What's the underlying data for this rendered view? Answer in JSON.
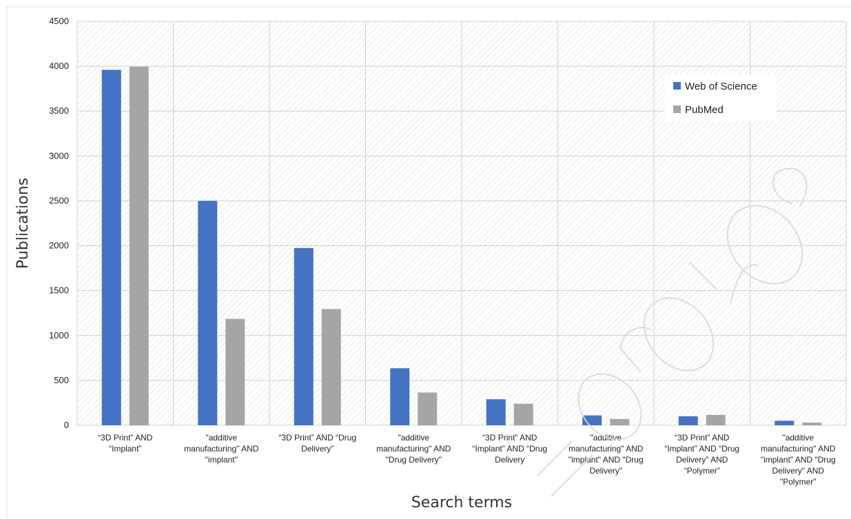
{
  "chart_data": {
    "type": "bar",
    "title": "",
    "xlabel": "Search terms",
    "ylabel": "Publications",
    "ylim": [
      0,
      4500
    ],
    "yticks": [
      0,
      500,
      1000,
      1500,
      2000,
      2500,
      3000,
      3500,
      4000,
      4500
    ],
    "grid": true,
    "legend_position": "top-right",
    "categories": [
      [
        "“3D Print” AND",
        "“Implant”"
      ],
      [
        "\"additive",
        "manufacturing\" AND",
        "\"implant\""
      ],
      [
        "“3D Print” AND “Drug",
        "Delivery”"
      ],
      [
        "\"additive",
        "manufacturing\" AND",
        "\"Drug Delivery\""
      ],
      [
        "“3D Print” AND",
        "“Implant” AND “Drug",
        "Delivery"
      ],
      [
        "\"additive",
        "manufacturing\" AND",
        "\"implant\" AND \"Drug",
        "Delivery\""
      ],
      [
        "“3D Print” AND",
        "“Implant” AND “Drug",
        "Delivery” AND",
        "“Polymer”"
      ],
      [
        "\"additive",
        "manufacturing\" AND",
        "\"implant\" AND \"Drug",
        "Delivery\" AND",
        "\"Polymer\""
      ]
    ],
    "series": [
      {
        "name": "Web of Science",
        "color": "#4472c4",
        "values": [
          3960,
          2500,
          1975,
          635,
          290,
          110,
          100,
          50
        ]
      },
      {
        "name": "PubMed",
        "color": "#a5a5a5",
        "values": [
          3995,
          1185,
          1295,
          365,
          240,
          70,
          115,
          30
        ]
      }
    ]
  }
}
